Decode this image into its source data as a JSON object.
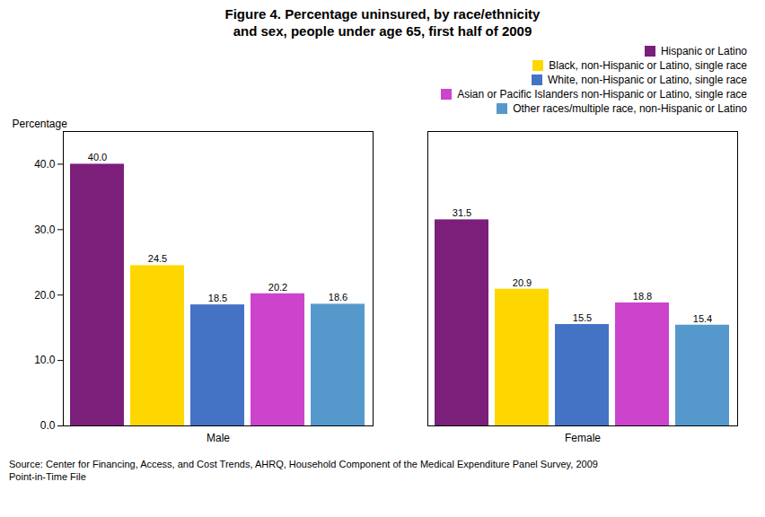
{
  "chart_data": {
    "type": "bar",
    "title": "Figure 4. Percentage uninsured, by race/ethnicity\nand sex, people under age 65, first half of 2009",
    "caption": "Source: Center for Financing, Access, and Cost Trends, AHRQ, Household Component of the Medical Expenditure Panel Survey, 2009\nPoint-in-Time File",
    "categories": [
      "Male",
      "Female"
    ],
    "series": [
      {
        "name": "Hispanic or Latino",
        "color": "#7B1F7B",
        "values": [
          40.0,
          31.5
        ],
        "value_labels": [
          "40.0",
          "31.5"
        ]
      },
      {
        "name": "Black, non-Hispanic or Latino, single race",
        "color": "#FFD700",
        "values": [
          24.5,
          20.9
        ],
        "value_labels": [
          "24.5",
          "20.9"
        ]
      },
      {
        "name": "White, non-Hispanic or Latino, single race",
        "color": "#4472C4",
        "values": [
          18.5,
          15.5
        ],
        "value_labels": [
          "18.5",
          "15.5"
        ]
      },
      {
        "name": "Asian or Pacific Islanders non-Hispanic or Latino, single race",
        "color": "#CC44CC",
        "values": [
          20.2,
          18.8
        ],
        "value_labels": [
          "20.2",
          "18.8"
        ]
      },
      {
        "name": "Other races/multiple race, non-Hispanic or Latino",
        "color": "#5599CC",
        "values": [
          18.6,
          15.4
        ],
        "value_labels": [
          "18.6",
          "15.4"
        ]
      }
    ],
    "ylabel": "Percentage",
    "ylim": [
      0,
      45
    ],
    "yticks": [
      {
        "value": 0,
        "label": "0.0"
      },
      {
        "value": 10,
        "label": "10.0"
      },
      {
        "value": 20,
        "label": "20.0"
      },
      {
        "value": 30,
        "label": "30.0"
      },
      {
        "value": 40,
        "label": "40.0"
      }
    ],
    "grid": false,
    "legend": "upper right",
    "data_labels": true
  }
}
